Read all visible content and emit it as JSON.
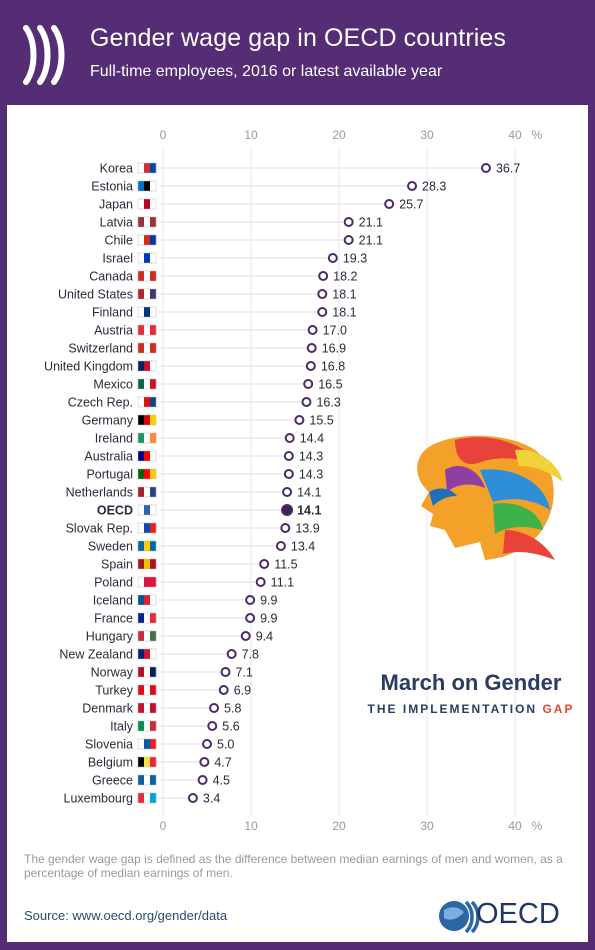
{
  "header": {
    "title": "Gender wage gap in OECD countries",
    "subtitle": "Full-time employees, 2016 or latest available year"
  },
  "brand": {
    "line1": "March on Gender",
    "line2_a": "THE IMPLEMENTATION ",
    "line2_b": "GAP"
  },
  "footer": {
    "note": "The gender wage gap is defined as the difference between median earnings of men and women, as a percentage of median earnings of men.",
    "source": "Source: www.oecd.org/gender/data",
    "logo_text": "OECD"
  },
  "colors": {
    "header_bg": "#552d74",
    "marker": "#4a2b66",
    "highlight": "#3d2257",
    "axis_text": "#9a9a9a",
    "label_text": "#2a2a3a",
    "grid": "#d8d2e2"
  },
  "chart_data": {
    "type": "scatter",
    "orientation": "horizontal",
    "unit": "%",
    "xlim": [
      0,
      40
    ],
    "xticks": [
      0,
      10,
      20,
      30,
      40
    ],
    "xtick_suffix": "%",
    "grid": true,
    "highlight": "OECD",
    "categories": [
      "Korea",
      "Estonia",
      "Japan",
      "Latvia",
      "Chile",
      "Israel",
      "Canada",
      "United States",
      "Finland",
      "Austria",
      "Switzerland",
      "United Kingdom",
      "Mexico",
      "Czech Rep.",
      "Germany",
      "Ireland",
      "Australia",
      "Portugal",
      "Netherlands",
      "OECD",
      "Slovak Rep.",
      "Sweden",
      "Spain",
      "Poland",
      "Iceland",
      "France",
      "Hungary",
      "New Zealand",
      "Norway",
      "Turkey",
      "Denmark",
      "Italy",
      "Slovenia",
      "Belgium",
      "Greece",
      "Luxembourg"
    ],
    "values": [
      36.7,
      28.3,
      25.7,
      21.1,
      21.1,
      19.3,
      18.2,
      18.1,
      18.1,
      17.0,
      16.9,
      16.8,
      16.5,
      16.3,
      15.5,
      14.4,
      14.3,
      14.3,
      14.1,
      14.1,
      13.9,
      13.4,
      11.5,
      11.1,
      9.9,
      9.9,
      9.4,
      7.8,
      7.1,
      6.9,
      5.8,
      5.6,
      5.0,
      4.7,
      4.5,
      3.4
    ],
    "value_labels": [
      "36.7",
      "28.3",
      "25.7",
      "21.1",
      "21.1",
      "19.3",
      "18.2",
      "18.1",
      "18.1",
      "17.0",
      "16.9",
      "16.8",
      "16.5",
      "16.3",
      "15.5",
      "14.4",
      "14.3",
      "14.3",
      "14.1",
      "14.1",
      "13.9",
      "13.4",
      "11.5",
      "11.1",
      "9.9",
      "9.9",
      "9.4",
      "7.8",
      "7.1",
      "6.9",
      "5.8",
      "5.6",
      "5.0",
      "4.7",
      "4.5",
      "3.4"
    ]
  }
}
